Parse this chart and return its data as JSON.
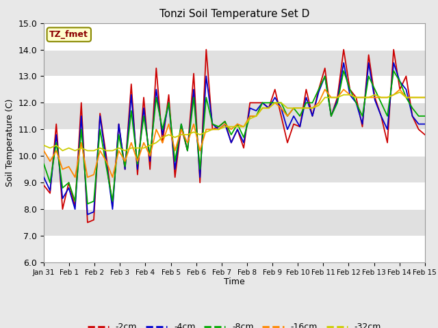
{
  "title": "Tonzi Soil Temperature Set D",
  "xlabel": "Time",
  "ylabel": "Soil Temperature (C)",
  "ylim": [
    6.0,
    15.0
  ],
  "yticks": [
    6.0,
    7.0,
    8.0,
    9.0,
    10.0,
    11.0,
    12.0,
    13.0,
    14.0,
    15.0
  ],
  "legend_label": "TZ_fmet",
  "fig_bg": "#e8e8e8",
  "plot_bg": "#e0e0e0",
  "series_colors": {
    "2cm": "#cc0000",
    "4cm": "#0000cc",
    "8cm": "#00aa00",
    "16cm": "#ff8800",
    "32cm": "#cccc00"
  },
  "xtick_labels": [
    "Jan 31",
    "Feb 1",
    "Feb 2",
    "Feb 3",
    "Feb 4",
    "Feb 5",
    "Feb 6",
    "Feb 7",
    "Feb 8",
    "Feb 9",
    "Feb 10",
    "Feb 11",
    "Feb 12",
    "Feb 13",
    "Feb 14",
    "Feb 15"
  ],
  "t_2cm": [
    8.9,
    8.6,
    11.2,
    8.0,
    9.0,
    8.1,
    12.0,
    7.5,
    7.6,
    11.6,
    10.0,
    8.1,
    11.2,
    9.5,
    12.7,
    9.3,
    12.2,
    9.5,
    13.3,
    10.5,
    12.3,
    9.2,
    11.1,
    10.2,
    13.1,
    9.0,
    14.0,
    11.0,
    11.1,
    11.3,
    10.5,
    11.0,
    10.3,
    12.0,
    12.0,
    12.0,
    11.8,
    12.5,
    11.5,
    10.5,
    11.2,
    11.1,
    12.5,
    11.5,
    12.5,
    13.3,
    11.5,
    12.2,
    14.0,
    12.5,
    12.2,
    11.1,
    13.8,
    12.2,
    11.5,
    10.5,
    14.0,
    12.5,
    13.0,
    11.5,
    11.0,
    10.8
  ],
  "t_4cm": [
    9.2,
    8.7,
    10.8,
    8.4,
    8.8,
    8.0,
    11.5,
    7.8,
    7.9,
    11.5,
    9.8,
    8.0,
    11.2,
    9.5,
    12.3,
    9.5,
    11.8,
    9.8,
    12.5,
    10.8,
    12.0,
    9.5,
    11.2,
    10.2,
    12.5,
    9.2,
    13.0,
    11.2,
    11.0,
    11.2,
    10.5,
    11.0,
    10.5,
    11.8,
    11.7,
    12.0,
    11.8,
    12.2,
    11.8,
    11.0,
    11.5,
    11.1,
    12.2,
    11.5,
    12.4,
    13.0,
    11.5,
    12.1,
    13.5,
    12.3,
    12.0,
    11.2,
    13.5,
    12.1,
    11.5,
    11.0,
    13.5,
    12.8,
    12.5,
    11.5,
    11.2,
    11.2
  ],
  "t_8cm": [
    9.7,
    9.0,
    10.5,
    8.8,
    9.0,
    8.3,
    11.0,
    8.2,
    8.3,
    11.0,
    9.6,
    8.3,
    10.8,
    9.6,
    11.7,
    9.7,
    11.5,
    10.0,
    12.2,
    11.0,
    12.0,
    9.8,
    11.2,
    10.2,
    12.2,
    9.5,
    12.2,
    11.2,
    11.1,
    11.3,
    10.8,
    11.2,
    10.7,
    11.5,
    11.5,
    12.0,
    12.0,
    12.0,
    12.0,
    11.5,
    11.8,
    11.5,
    12.0,
    12.0,
    12.5,
    13.0,
    11.5,
    12.0,
    13.2,
    12.5,
    12.0,
    11.5,
    13.0,
    12.5,
    12.0,
    11.5,
    13.2,
    12.8,
    12.2,
    11.8,
    11.5,
    11.5
  ],
  "t_16cm": [
    10.2,
    9.8,
    10.2,
    9.5,
    9.6,
    9.2,
    10.5,
    9.2,
    9.3,
    10.2,
    9.8,
    9.2,
    10.2,
    9.8,
    10.5,
    9.8,
    10.5,
    10.0,
    11.0,
    10.5,
    11.2,
    10.2,
    11.0,
    10.5,
    11.2,
    10.2,
    11.0,
    11.0,
    11.0,
    11.2,
    11.0,
    11.2,
    11.1,
    11.5,
    11.5,
    11.8,
    11.8,
    12.0,
    11.8,
    11.5,
    11.8,
    11.8,
    11.8,
    11.8,
    12.0,
    12.5,
    12.2,
    12.2,
    12.5,
    12.3,
    12.2,
    12.2,
    12.2,
    12.2,
    12.2,
    12.2,
    12.3,
    12.5,
    12.2,
    12.2,
    12.2,
    12.2
  ],
  "t_32cm": [
    10.4,
    10.3,
    10.4,
    10.2,
    10.3,
    10.2,
    10.3,
    10.2,
    10.2,
    10.3,
    10.2,
    10.2,
    10.3,
    10.2,
    10.3,
    10.3,
    10.3,
    10.4,
    10.5,
    10.7,
    10.8,
    10.7,
    10.8,
    10.8,
    10.9,
    10.8,
    10.9,
    11.0,
    11.0,
    11.1,
    11.1,
    11.1,
    11.1,
    11.4,
    11.5,
    11.8,
    11.8,
    12.0,
    12.0,
    11.8,
    11.8,
    11.8,
    11.8,
    11.8,
    11.9,
    12.2,
    12.2,
    12.2,
    12.3,
    12.3,
    12.2,
    12.2,
    12.2,
    12.3,
    12.2,
    12.2,
    12.3,
    12.4,
    12.2,
    12.2,
    12.2,
    12.2
  ]
}
